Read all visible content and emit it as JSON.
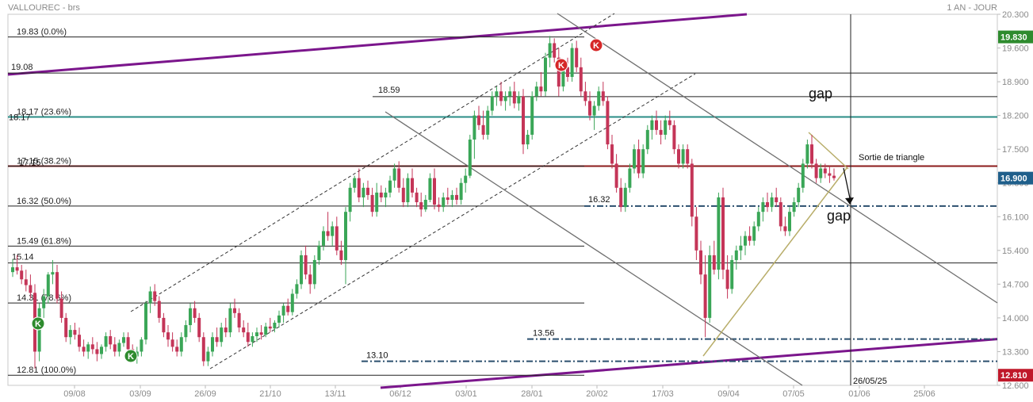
{
  "header": {
    "title": "VALLOUREC - brs",
    "period": "1 AN - JOUR"
  },
  "chart_data": {
    "type": "candlestick",
    "ylim": [
      12.6,
      20.3
    ],
    "y_ticks": [
      "20.300",
      "19.600",
      "18.900",
      "18.200",
      "17.500",
      "16.800",
      "16.100",
      "15.400",
      "14.700",
      "14.000",
      "13.300",
      "12.600"
    ],
    "x_ticks": [
      "09/08",
      "03/09",
      "26/09",
      "21/10",
      "13/11",
      "06/12",
      "03/01",
      "28/01",
      "20/02",
      "17/03",
      "09/04",
      "07/05",
      "01/06",
      "25/06"
    ],
    "price_badges": [
      {
        "label": "19.830",
        "value": 19.83,
        "color": "#2e8b2e"
      },
      {
        "label": "16.900",
        "value": 16.9,
        "color": "#1f5f8b"
      },
      {
        "label": "12.810",
        "value": 12.81,
        "color": "#c0182a"
      }
    ],
    "fibonacci": [
      {
        "text": "19.83  (0.0%)",
        "value": 19.83
      },
      {
        "text": "18.17  (23.6%)",
        "value": 18.17
      },
      {
        "text": "17.15  (38.2%)",
        "value": 17.15
      },
      {
        "text": "16.32  (50.0%)",
        "value": 16.32
      },
      {
        "text": "15.49  (61.8%)",
        "value": 15.49
      },
      {
        "text": "14.31  (78.6%)",
        "value": 14.31
      },
      {
        "text": "12.81  (100.0%)",
        "value": 12.81
      }
    ],
    "levels": [
      {
        "text": "19.08",
        "value": 19.08
      },
      {
        "text": "18.59",
        "value": 18.59
      },
      {
        "text": "15.14",
        "value": 15.14
      },
      {
        "text": "16.32",
        "value": 16.32
      },
      {
        "text": "13.56",
        "value": 13.56
      },
      {
        "text": "13.10",
        "value": 13.1
      }
    ],
    "overlay_labels": {
      "teal_level": "18.17",
      "red_level": "17.15"
    },
    "annotations": {
      "gap_top": "gap",
      "gap_bottom": "gap",
      "triangle": "Sortie de triangle",
      "date_marker": "26/05/25"
    },
    "signals": [
      {
        "label": "K",
        "color": "#2e8b2e",
        "date": "23/07"
      },
      {
        "label": "K",
        "color": "#2e8b2e",
        "date": "29/08"
      },
      {
        "label": "K",
        "color": "#d62728",
        "date": "10/02"
      },
      {
        "label": "K",
        "color": "#d62728",
        "date": "17/02"
      }
    ],
    "colors": {
      "up": "#3aa657",
      "down": "#c43558",
      "teal": "#2a8c86",
      "darkred": "#8b1a1a",
      "purple": "#7b168c",
      "navy": "#2b4f6e",
      "olive": "#b8ad69",
      "gray": "#6f6f6f"
    },
    "ohlc": [
      [
        14.95,
        15.22,
        14.85,
        15.05
      ],
      [
        15.05,
        15.3,
        14.9,
        14.98
      ],
      [
        14.98,
        15.1,
        14.7,
        14.8
      ],
      [
        14.8,
        15.0,
        14.55,
        14.68
      ],
      [
        14.68,
        14.9,
        14.4,
        14.52
      ],
      [
        14.52,
        14.7,
        12.95,
        13.3
      ],
      [
        13.3,
        14.3,
        13.1,
        14.2
      ],
      [
        14.2,
        14.6,
        14.0,
        14.45
      ],
      [
        14.45,
        14.95,
        14.3,
        14.9
      ],
      [
        14.9,
        15.2,
        14.7,
        14.95
      ],
      [
        14.95,
        15.1,
        14.3,
        14.4
      ],
      [
        14.4,
        14.55,
        13.9,
        14.0
      ],
      [
        14.0,
        14.1,
        13.5,
        13.6
      ],
      [
        13.6,
        13.85,
        13.45,
        13.75
      ],
      [
        13.75,
        13.9,
        13.55,
        13.65
      ],
      [
        13.65,
        13.8,
        13.3,
        13.4
      ],
      [
        13.4,
        13.55,
        13.2,
        13.3
      ],
      [
        13.3,
        13.5,
        13.15,
        13.45
      ],
      [
        13.45,
        13.6,
        13.25,
        13.35
      ],
      [
        13.35,
        13.5,
        13.1,
        13.25
      ],
      [
        13.25,
        13.45,
        13.15,
        13.4
      ],
      [
        13.4,
        13.7,
        13.3,
        13.62
      ],
      [
        13.62,
        13.75,
        13.35,
        13.45
      ],
      [
        13.45,
        13.6,
        13.2,
        13.3
      ],
      [
        13.3,
        13.55,
        13.2,
        13.48
      ],
      [
        13.48,
        13.7,
        13.4,
        13.6
      ],
      [
        13.6,
        13.7,
        13.25,
        13.35
      ],
      [
        13.35,
        13.45,
        13.1,
        13.2
      ],
      [
        13.2,
        13.4,
        13.05,
        13.3
      ],
      [
        13.3,
        13.6,
        13.2,
        13.55
      ],
      [
        13.55,
        14.35,
        13.45,
        14.3
      ],
      [
        14.3,
        14.65,
        14.1,
        14.55
      ],
      [
        14.55,
        14.7,
        14.25,
        14.35
      ],
      [
        14.35,
        14.45,
        13.9,
        14.0
      ],
      [
        14.0,
        14.1,
        13.6,
        13.7
      ],
      [
        13.7,
        13.85,
        13.4,
        13.55
      ],
      [
        13.55,
        13.7,
        13.3,
        13.4
      ],
      [
        13.4,
        13.55,
        13.2,
        13.3
      ],
      [
        13.3,
        13.7,
        13.2,
        13.6
      ],
      [
        13.6,
        13.95,
        13.5,
        13.85
      ],
      [
        13.85,
        14.3,
        13.7,
        14.2
      ],
      [
        14.2,
        14.35,
        13.9,
        14.0
      ],
      [
        14.0,
        14.1,
        13.5,
        13.6
      ],
      [
        13.6,
        13.7,
        13.0,
        13.1
      ],
      [
        13.1,
        13.4,
        13.0,
        13.3
      ],
      [
        13.3,
        13.7,
        13.2,
        13.6
      ],
      [
        13.6,
        13.8,
        13.4,
        13.5
      ],
      [
        13.5,
        13.9,
        13.4,
        13.8
      ],
      [
        13.8,
        14.0,
        13.6,
        13.7
      ],
      [
        13.7,
        14.3,
        13.6,
        14.2
      ],
      [
        14.2,
        14.4,
        14.0,
        14.1
      ],
      [
        14.1,
        14.2,
        13.7,
        13.8
      ],
      [
        13.8,
        13.95,
        13.6,
        13.7
      ],
      [
        13.7,
        13.9,
        13.4,
        13.5
      ],
      [
        13.5,
        13.7,
        13.4,
        13.62
      ],
      [
        13.62,
        13.8,
        13.5,
        13.7
      ],
      [
        13.7,
        13.85,
        13.55,
        13.65
      ],
      [
        13.65,
        13.9,
        13.6,
        13.82
      ],
      [
        13.82,
        14.0,
        13.7,
        13.78
      ],
      [
        13.78,
        13.95,
        13.7,
        13.9
      ],
      [
        13.9,
        14.15,
        13.8,
        14.05
      ],
      [
        14.05,
        14.3,
        13.9,
        14.25
      ],
      [
        14.25,
        14.4,
        14.05,
        14.12
      ],
      [
        14.12,
        14.6,
        14.05,
        14.5
      ],
      [
        14.5,
        14.8,
        14.4,
        14.7
      ],
      [
        14.7,
        15.4,
        14.6,
        15.3
      ],
      [
        15.3,
        15.5,
        14.8,
        14.9
      ],
      [
        14.9,
        15.1,
        14.5,
        14.7
      ],
      [
        14.7,
        15.3,
        14.6,
        15.2
      ],
      [
        15.2,
        15.6,
        15.1,
        15.5
      ],
      [
        15.5,
        15.9,
        15.4,
        15.8
      ],
      [
        15.8,
        16.2,
        15.6,
        15.7
      ],
      [
        15.7,
        16.0,
        15.5,
        15.9
      ],
      [
        15.9,
        16.1,
        15.3,
        15.4
      ],
      [
        15.4,
        15.6,
        15.1,
        15.2
      ],
      [
        15.2,
        16.3,
        14.7,
        16.2
      ],
      [
        16.2,
        16.8,
        16.0,
        16.7
      ],
      [
        16.7,
        16.95,
        16.6,
        16.9
      ],
      [
        16.9,
        17.1,
        16.4,
        16.5
      ],
      [
        16.5,
        16.8,
        16.3,
        16.7
      ],
      [
        16.7,
        16.85,
        16.45,
        16.55
      ],
      [
        16.55,
        16.7,
        16.1,
        16.2
      ],
      [
        16.2,
        16.8,
        16.1,
        16.6
      ],
      [
        16.6,
        16.75,
        16.4,
        16.5
      ],
      [
        16.5,
        16.7,
        16.3,
        16.6
      ],
      [
        16.6,
        16.95,
        16.5,
        16.85
      ],
      [
        16.85,
        17.2,
        16.7,
        17.1
      ],
      [
        17.1,
        17.25,
        16.6,
        16.7
      ],
      [
        16.7,
        16.9,
        16.3,
        16.4
      ],
      [
        16.4,
        17.0,
        16.3,
        16.9
      ],
      [
        16.9,
        17.1,
        16.5,
        16.6
      ],
      [
        16.6,
        16.7,
        16.3,
        16.4
      ],
      [
        16.4,
        16.6,
        16.1,
        16.25
      ],
      [
        16.25,
        16.55,
        16.2,
        16.45
      ],
      [
        16.45,
        17.0,
        16.4,
        16.9
      ],
      [
        16.9,
        17.1,
        16.25,
        16.35
      ],
      [
        16.35,
        16.5,
        16.2,
        16.3
      ],
      [
        16.3,
        16.6,
        16.2,
        16.5
      ],
      [
        16.5,
        16.7,
        16.35,
        16.45
      ],
      [
        16.45,
        16.65,
        16.3,
        16.55
      ],
      [
        16.55,
        16.7,
        16.35,
        16.45
      ],
      [
        16.45,
        16.9,
        16.35,
        16.8
      ],
      [
        16.8,
        17.1,
        16.6,
        16.95
      ],
      [
        16.95,
        17.8,
        16.9,
        17.7
      ],
      [
        17.7,
        18.3,
        17.3,
        18.2
      ],
      [
        18.2,
        18.4,
        17.9,
        18.0
      ],
      [
        18.0,
        18.3,
        17.7,
        17.8
      ],
      [
        17.8,
        18.4,
        17.7,
        18.3
      ],
      [
        18.3,
        18.7,
        18.2,
        18.6
      ],
      [
        18.6,
        18.8,
        18.4,
        18.7
      ],
      [
        18.7,
        18.9,
        18.4,
        18.5
      ],
      [
        18.5,
        18.7,
        18.3,
        18.6
      ],
      [
        18.6,
        18.8,
        18.4,
        18.7
      ],
      [
        18.7,
        18.9,
        18.35,
        18.45
      ],
      [
        18.45,
        18.7,
        18.3,
        18.6
      ],
      [
        18.6,
        18.75,
        17.4,
        17.6
      ],
      [
        17.6,
        17.9,
        17.5,
        17.8
      ],
      [
        17.8,
        18.7,
        17.7,
        18.6
      ],
      [
        18.6,
        18.9,
        18.5,
        18.8
      ],
      [
        18.8,
        19.1,
        18.6,
        18.7
      ],
      [
        18.7,
        19.5,
        18.6,
        19.4
      ],
      [
        19.4,
        19.85,
        19.2,
        19.7
      ],
      [
        19.7,
        19.8,
        19.3,
        19.4
      ],
      [
        19.4,
        19.6,
        18.6,
        18.8
      ],
      [
        18.8,
        19.3,
        18.7,
        19.2
      ],
      [
        19.2,
        19.4,
        18.9,
        19.0
      ],
      [
        19.0,
        19.7,
        18.9,
        19.6
      ],
      [
        19.6,
        19.75,
        19.1,
        19.2
      ],
      [
        19.2,
        19.4,
        18.6,
        18.7
      ],
      [
        18.7,
        18.9,
        18.4,
        18.5
      ],
      [
        18.5,
        18.7,
        18.1,
        18.2
      ],
      [
        18.2,
        18.5,
        17.9,
        18.4
      ],
      [
        18.4,
        18.8,
        18.3,
        18.7
      ],
      [
        18.7,
        18.9,
        18.4,
        18.5
      ],
      [
        18.5,
        18.6,
        17.5,
        17.6
      ],
      [
        17.6,
        17.8,
        17.1,
        17.2
      ],
      [
        17.2,
        17.4,
        16.6,
        16.7
      ],
      [
        16.7,
        16.9,
        16.2,
        16.3
      ],
      [
        16.3,
        16.8,
        16.2,
        16.7
      ],
      [
        16.7,
        17.2,
        16.6,
        17.1
      ],
      [
        17.1,
        17.6,
        17.0,
        17.5
      ],
      [
        17.5,
        17.7,
        16.9,
        17.0
      ],
      [
        17.0,
        17.6,
        16.9,
        17.5
      ],
      [
        17.5,
        18.0,
        17.4,
        17.9
      ],
      [
        17.9,
        18.2,
        17.7,
        18.1
      ],
      [
        18.1,
        18.3,
        17.8,
        17.9
      ],
      [
        17.9,
        18.1,
        17.6,
        17.8
      ],
      [
        17.8,
        18.2,
        17.7,
        18.1
      ],
      [
        18.1,
        18.3,
        17.9,
        18.0
      ],
      [
        18.0,
        18.1,
        17.4,
        17.5
      ],
      [
        17.5,
        17.6,
        17.1,
        17.2
      ],
      [
        17.2,
        17.6,
        17.1,
        17.5
      ],
      [
        17.5,
        17.6,
        17.1,
        17.2
      ],
      [
        17.2,
        17.3,
        15.9,
        16.1
      ],
      [
        16.1,
        16.3,
        15.2,
        15.4
      ],
      [
        15.4,
        15.6,
        14.7,
        14.9
      ],
      [
        14.9,
        15.3,
        13.6,
        14.0
      ],
      [
        14.0,
        15.5,
        13.9,
        15.3
      ],
      [
        15.3,
        15.6,
        14.9,
        15.0
      ],
      [
        15.0,
        16.6,
        14.8,
        16.5
      ],
      [
        16.5,
        16.7,
        14.8,
        15.0
      ],
      [
        15.0,
        15.3,
        14.4,
        14.6
      ],
      [
        14.6,
        15.3,
        14.5,
        15.2
      ],
      [
        15.2,
        15.5,
        15.0,
        15.4
      ],
      [
        15.4,
        15.7,
        15.2,
        15.5
      ],
      [
        15.5,
        15.8,
        15.3,
        15.7
      ],
      [
        15.7,
        15.9,
        15.5,
        15.6
      ],
      [
        15.6,
        16.0,
        15.5,
        15.9
      ],
      [
        15.9,
        16.3,
        15.8,
        16.2
      ],
      [
        16.2,
        16.5,
        16.0,
        16.4
      ],
      [
        16.4,
        16.6,
        16.2,
        16.3
      ],
      [
        16.3,
        16.6,
        16.2,
        16.5
      ],
      [
        16.5,
        16.7,
        16.3,
        16.4
      ],
      [
        16.4,
        16.5,
        15.8,
        15.9
      ],
      [
        15.9,
        16.1,
        15.7,
        15.8
      ],
      [
        15.8,
        16.3,
        15.7,
        16.2
      ],
      [
        16.2,
        16.5,
        16.1,
        16.4
      ],
      [
        16.4,
        16.8,
        16.3,
        16.7
      ],
      [
        16.7,
        17.3,
        16.6,
        17.2
      ],
      [
        17.2,
        17.7,
        17.1,
        17.6
      ],
      [
        17.6,
        17.8,
        17.1,
        17.2
      ],
      [
        17.2,
        17.3,
        16.8,
        16.9
      ],
      [
        16.9,
        17.2,
        16.8,
        17.1
      ],
      [
        17.1,
        17.2,
        16.9,
        17.0
      ],
      [
        17.0,
        17.15,
        16.8,
        16.95
      ],
      [
        16.95,
        17.1,
        16.85,
        16.9
      ]
    ]
  }
}
